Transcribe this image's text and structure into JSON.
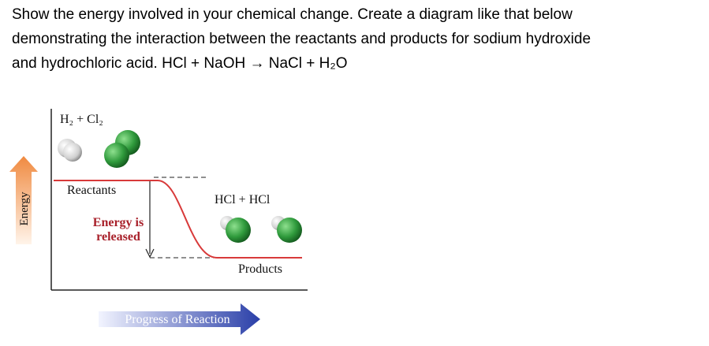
{
  "question": {
    "lines": [
      "Show the energy involved in your chemical change. Create a diagram like that below",
      "demonstrating the interaction between the reactants and products for sodium hydroxide",
      "and hydrochloric acid. HCl + NaOH  →  NaCl + H₂O"
    ]
  },
  "diagram": {
    "reactants_formula": "H₂  +  Cl₂",
    "reactants_label": "Reactants",
    "energy_released": [
      "Energy is",
      "released"
    ],
    "products_formula": "HCl  +  HCl",
    "products_label": "Products",
    "y_axis_label": "Energy",
    "x_axis_label": "Progress of Reaction"
  }
}
